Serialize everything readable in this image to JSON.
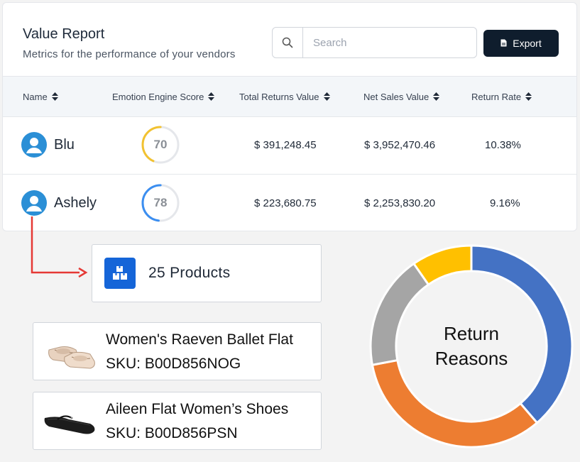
{
  "header": {
    "title": "Value Report",
    "subtitle": "Metrics for the performance of your vendors"
  },
  "search": {
    "placeholder": "Search",
    "value": ""
  },
  "export": {
    "label": "Export"
  },
  "table": {
    "columns": [
      "Name",
      "Emotion Engine Score",
      "Total Returns Value",
      "Net Sales Value",
      "Return Rate"
    ],
    "rows": [
      {
        "name": "Blu",
        "score": 70,
        "score_label": "70",
        "score_color": "#f2c230",
        "total_returns": "$ 391,248.45",
        "net_sales": "$ 3,952,470.46",
        "return_rate": "10.38%"
      },
      {
        "name": "Ashely",
        "score": 78,
        "score_label": "78",
        "score_color": "#3b8ef0",
        "total_returns": "$ 223,680.75",
        "net_sales": "$ 2,253,830.20",
        "return_rate": "9.16%"
      }
    ]
  },
  "products_summary": {
    "label": "25 Products"
  },
  "products": [
    {
      "name": "Women's Raeven Ballet Flat",
      "sku": "SKU: B00D856NOG",
      "image": "beige-ballet-flat"
    },
    {
      "name": "Aileen Flat Women’s Shoes",
      "sku": "SKU: B00D856PSN",
      "image": "black-mary-jane-flat"
    }
  ],
  "chart_data": {
    "type": "pie",
    "title": "Return Reasons",
    "series": [
      {
        "values": [
          0.36,
          0.31,
          0.17,
          0.09
        ],
        "colors": [
          "#4472c4",
          "#ed7d31",
          "#a5a5a5",
          "#ffc000"
        ]
      }
    ]
  },
  "colors": {
    "accent": "#0f1d2d",
    "primary_blue": "#1565d8",
    "avatar_blue": "#2b8fd6",
    "arrow_red": "#e53935"
  }
}
